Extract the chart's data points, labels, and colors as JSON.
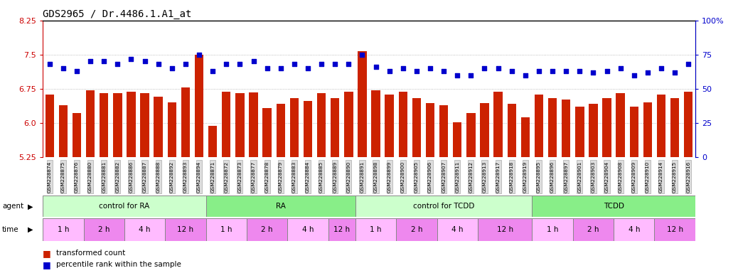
{
  "title": "GDS2965 / Dr.4486.1.A1_at",
  "samples": [
    "GSM228874",
    "GSM228875",
    "GSM228876",
    "GSM228880",
    "GSM228881",
    "GSM228882",
    "GSM228886",
    "GSM228887",
    "GSM228888",
    "GSM228892",
    "GSM228893",
    "GSM228894",
    "GSM228871",
    "GSM228872",
    "GSM228873",
    "GSM228877",
    "GSM228878",
    "GSM228879",
    "GSM228883",
    "GSM228884",
    "GSM228885",
    "GSM228889",
    "GSM228890",
    "GSM228891",
    "GSM228898",
    "GSM228899",
    "GSM228900",
    "GSM228905",
    "GSM228906",
    "GSM228907",
    "GSM228911",
    "GSM228912",
    "GSM228913",
    "GSM228917",
    "GSM228918",
    "GSM228919",
    "GSM228895",
    "GSM228896",
    "GSM228897",
    "GSM228901",
    "GSM228903",
    "GSM228904",
    "GSM228908",
    "GSM228909",
    "GSM228910",
    "GSM228914",
    "GSM228915",
    "GSM228916"
  ],
  "bar_values": [
    6.62,
    6.38,
    6.22,
    6.72,
    6.65,
    6.65,
    6.68,
    6.65,
    6.57,
    6.45,
    6.78,
    7.49,
    5.94,
    6.68,
    6.65,
    6.67,
    6.32,
    6.42,
    6.55,
    6.48,
    6.65,
    6.55,
    6.68,
    7.58,
    6.72,
    6.62,
    6.68,
    6.55,
    6.44,
    6.38,
    6.02,
    6.22,
    6.44,
    6.68,
    6.42,
    6.12,
    6.62,
    6.55,
    6.52,
    6.35,
    6.42,
    6.55,
    6.65,
    6.36,
    6.45,
    6.62,
    6.55,
    6.68
  ],
  "percentile_values": [
    68,
    65,
    63,
    70,
    70,
    68,
    72,
    70,
    68,
    65,
    68,
    75,
    63,
    68,
    68,
    70,
    65,
    65,
    68,
    65,
    68,
    68,
    68,
    75,
    66,
    63,
    65,
    63,
    65,
    63,
    60,
    60,
    65,
    65,
    63,
    60,
    63,
    63,
    63,
    63,
    62,
    63,
    65,
    60,
    62,
    65,
    62,
    68
  ],
  "ylim_left": [
    5.25,
    8.25
  ],
  "ylim_right": [
    0,
    100
  ],
  "yticks_left": [
    5.25,
    6.0,
    6.75,
    7.5,
    8.25
  ],
  "yticks_right": [
    0,
    25,
    50,
    75,
    100
  ],
  "bar_color": "#cc2200",
  "dot_color": "#0000cc",
  "agent_groups": [
    {
      "label": "control for RA",
      "start": 0,
      "end": 11,
      "color": "#ccffcc"
    },
    {
      "label": "RA",
      "start": 12,
      "end": 22,
      "color": "#88ee88"
    },
    {
      "label": "control for TCDD",
      "start": 23,
      "end": 35,
      "color": "#ccffcc"
    },
    {
      "label": "TCDD",
      "start": 36,
      "end": 47,
      "color": "#88ee88"
    }
  ],
  "time_groups": [
    {
      "label": "1 h",
      "start": 0,
      "end": 2,
      "color": "#ffbbff"
    },
    {
      "label": "2 h",
      "start": 3,
      "end": 5,
      "color": "#ee88ee"
    },
    {
      "label": "4 h",
      "start": 6,
      "end": 8,
      "color": "#ffbbff"
    },
    {
      "label": "12 h",
      "start": 9,
      "end": 11,
      "color": "#ee88ee"
    },
    {
      "label": "1 h",
      "start": 12,
      "end": 14,
      "color": "#ffbbff"
    },
    {
      "label": "2 h",
      "start": 15,
      "end": 17,
      "color": "#ee88ee"
    },
    {
      "label": "4 h",
      "start": 18,
      "end": 20,
      "color": "#ffbbff"
    },
    {
      "label": "12 h",
      "start": 21,
      "end": 22,
      "color": "#ee88ee"
    },
    {
      "label": "1 h",
      "start": 23,
      "end": 25,
      "color": "#ffbbff"
    },
    {
      "label": "2 h",
      "start": 26,
      "end": 28,
      "color": "#ee88ee"
    },
    {
      "label": "4 h",
      "start": 29,
      "end": 31,
      "color": "#ffbbff"
    },
    {
      "label": "12 h",
      "start": 32,
      "end": 35,
      "color": "#ee88ee"
    },
    {
      "label": "1 h",
      "start": 36,
      "end": 38,
      "color": "#ffbbff"
    },
    {
      "label": "2 h",
      "start": 39,
      "end": 41,
      "color": "#ee88ee"
    },
    {
      "label": "4 h",
      "start": 42,
      "end": 44,
      "color": "#ffbbff"
    },
    {
      "label": "12 h",
      "start": 45,
      "end": 47,
      "color": "#ee88ee"
    }
  ],
  "legend_items": [
    {
      "label": "transformed count",
      "color": "#cc2200"
    },
    {
      "label": "percentile rank within the sample",
      "color": "#0000cc"
    }
  ],
  "grid_color": "#aaaaaa",
  "background_color": "#ffffff",
  "title_fontsize": 10,
  "left_color": "#cc0000",
  "right_color": "#0000cc"
}
